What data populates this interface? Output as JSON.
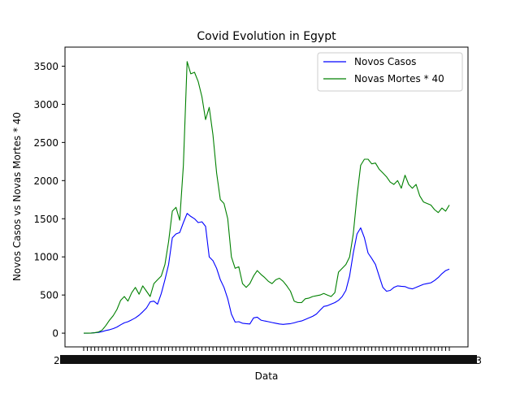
{
  "chart_data": {
    "type": "line",
    "title": "Covid Evolution in Egypt",
    "xlabel": "Data",
    "ylabel": "Novos Casos vs Novas Mortes * 40",
    "ylim": [
      -180,
      3750
    ],
    "yticks": [
      0,
      500,
      1000,
      1500,
      2000,
      2500,
      3000,
      3500
    ],
    "x_tick_label_first": "2",
    "x_tick_label_last": "3",
    "legend_position": "upper right",
    "grid": false,
    "x_points": 100,
    "series": [
      {
        "name": "Novos Casos",
        "color": "#0000ff",
        "values": [
          0,
          0,
          2,
          5,
          10,
          20,
          35,
          45,
          60,
          80,
          110,
          135,
          150,
          175,
          200,
          235,
          280,
          330,
          410,
          420,
          380,
          520,
          700,
          900,
          1250,
          1300,
          1320,
          1450,
          1570,
          1530,
          1500,
          1450,
          1460,
          1400,
          1000,
          950,
          850,
          700,
          600,
          450,
          250,
          145,
          150,
          130,
          125,
          120,
          200,
          210,
          170,
          160,
          150,
          140,
          130,
          120,
          115,
          120,
          125,
          135,
          150,
          160,
          180,
          200,
          220,
          250,
          300,
          350,
          360,
          380,
          400,
          430,
          480,
          560,
          750,
          1050,
          1300,
          1380,
          1250,
          1050,
          980,
          900,
          750,
          600,
          550,
          560,
          600,
          620,
          615,
          610,
          590,
          580,
          600,
          620,
          640,
          650,
          660,
          690,
          730,
          780,
          820,
          840
        ]
      },
      {
        "name": "Novas Mortes * 40",
        "color": "#008000",
        "values": [
          0,
          0,
          0,
          5,
          15,
          40,
          100,
          170,
          230,
          310,
          430,
          480,
          420,
          530,
          600,
          510,
          620,
          550,
          480,
          650,
          700,
          750,
          900,
          1200,
          1600,
          1650,
          1480,
          2200,
          3560,
          3400,
          3420,
          3300,
          3100,
          2800,
          2960,
          2600,
          2100,
          1750,
          1700,
          1500,
          1000,
          850,
          870,
          650,
          600,
          650,
          750,
          820,
          770,
          730,
          680,
          650,
          700,
          720,
          680,
          620,
          550,
          420,
          400,
          400,
          450,
          460,
          480,
          490,
          500,
          520,
          500,
          480,
          530,
          800,
          850,
          900,
          1000,
          1300,
          1800,
          2200,
          2280,
          2280,
          2220,
          2230,
          2150,
          2100,
          2050,
          1980,
          1950,
          2000,
          1900,
          2070,
          1950,
          1900,
          1950,
          1800,
          1720,
          1700,
          1680,
          1620,
          1580,
          1640,
          1600,
          1680
        ]
      }
    ]
  }
}
